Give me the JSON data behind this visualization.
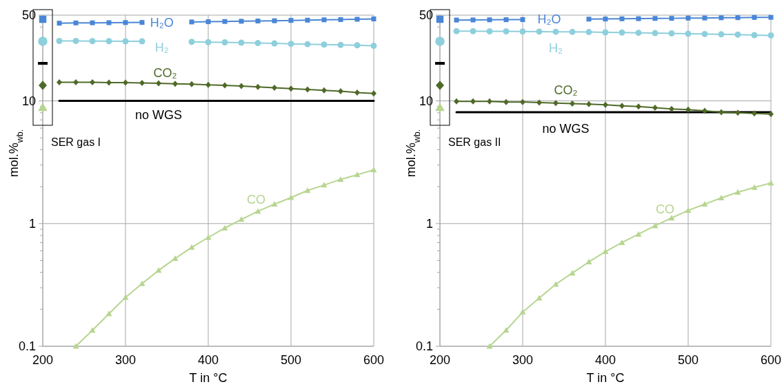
{
  "chart_data": [
    {
      "type": "line",
      "xlabel": "T in °C",
      "ylabel": "mol.%$_{wb.}$",
      "log": "y",
      "grid": true,
      "legend": "top left",
      "annotations": [
        "SER gas I"
      ],
      "x": [
        220,
        240,
        260,
        280,
        300,
        320,
        340,
        360,
        380,
        400,
        420,
        440,
        460,
        480,
        500,
        520,
        540,
        560,
        580,
        600
      ],
      "xlim": [
        200,
        600
      ],
      "xticks": [
        200,
        300,
        400,
        500,
        600
      ],
      "ylim": [
        0.1,
        50
      ],
      "yticks": [
        0.1,
        {
          "value": 0.2,
          "label": null
        },
        {
          "value": 0.3,
          "label": null
        },
        {
          "value": 0.4,
          "label": null
        },
        {
          "value": 0.5,
          "label": null
        },
        {
          "value": 0.6,
          "label": null
        },
        {
          "value": 0.7,
          "label": null
        },
        {
          "value": 0.8,
          "label": null
        },
        {
          "value": 0.9,
          "label": null
        },
        1,
        {
          "value": 2,
          "label": null
        },
        {
          "value": 3,
          "label": null
        },
        {
          "value": 4,
          "label": null
        },
        {
          "value": 5,
          "label": null
        },
        {
          "value": 6,
          "label": null
        },
        {
          "value": 7,
          "label": null
        },
        {
          "value": 8,
          "label": null
        },
        {
          "value": 9,
          "label": null
        },
        10,
        {
          "value": 20,
          "label": null
        },
        {
          "value": 30,
          "label": null
        },
        {
          "value": 40,
          "label": null
        },
        50
      ],
      "series": [
        {
          "name": "H₂O",
          "color": "#4a86d6",
          "marker": "square",
          "values": [
            43,
            43.2,
            43.3,
            43.4,
            43.5,
            43.6,
            null,
            null,
            44.0,
            44.2,
            44.4,
            44.6,
            44.8,
            45.0,
            45.3,
            45.5,
            45.8,
            46.0,
            46.3,
            46.6
          ]
        },
        {
          "name": "H₂",
          "color": "#8ecfdc",
          "marker": "circle",
          "values": [
            30.8,
            30.8,
            30.7,
            30.7,
            30.6,
            30.6,
            null,
            null,
            30.3,
            30.1,
            30.0,
            29.8,
            29.6,
            29.4,
            29.2,
            29.0,
            28.8,
            28.6,
            28.4,
            28.1
          ]
        },
        {
          "name": "no WGS",
          "color": "#000000",
          "marker": "none",
          "x": [
            220,
            600
          ],
          "values": [
            10,
            10
          ]
        },
        {
          "name": "CO₂",
          "color": "#4f6a28",
          "marker": "diamond",
          "values": [
            14.2,
            14.2,
            14.2,
            14.1,
            14.1,
            14.0,
            13.9,
            13.8,
            13.7,
            13.5,
            13.4,
            13.2,
            13.0,
            12.8,
            12.6,
            12.4,
            12.2,
            12.0,
            11.7,
            11.5
          ]
        },
        {
          "name": "CO",
          "color": "#b7d590",
          "marker": "triangle",
          "x": [
            240,
            260,
            280,
            300,
            320,
            340,
            360,
            380,
            400,
            420,
            440,
            460,
            480,
            500,
            520,
            540,
            560,
            580,
            600
          ],
          "values": [
            0.1,
            0.135,
            0.184,
            0.25,
            0.324,
            0.415,
            0.52,
            0.64,
            0.77,
            0.92,
            1.08,
            1.26,
            1.44,
            1.63,
            1.86,
            2.06,
            2.29,
            2.5,
            2.74
          ]
        }
      ]
    },
    {
      "type": "line",
      "xlabel": "T in °C",
      "ylabel": "mol.%$_{wb.}$",
      "log": "y",
      "grid": true,
      "legend": "top left",
      "annotations": [
        "SER gas II"
      ],
      "x": [
        220,
        240,
        260,
        280,
        300,
        320,
        340,
        360,
        380,
        400,
        420,
        440,
        460,
        480,
        500,
        520,
        540,
        560,
        580,
        600
      ],
      "xlim": [
        200,
        600
      ],
      "xticks": [
        200,
        300,
        400,
        500,
        600
      ],
      "ylim": [
        0.1,
        50
      ],
      "yticks": [
        0.1,
        {
          "value": 0.2,
          "label": null
        },
        {
          "value": 0.3,
          "label": null
        },
        {
          "value": 0.4,
          "label": null
        },
        {
          "value": 0.5,
          "label": null
        },
        {
          "value": 0.6,
          "label": null
        },
        {
          "value": 0.7,
          "label": null
        },
        {
          "value": 0.8,
          "label": null
        },
        {
          "value": 0.9,
          "label": null
        },
        1,
        {
          "value": 2,
          "label": null
        },
        {
          "value": 3,
          "label": null
        },
        {
          "value": 4,
          "label": null
        },
        {
          "value": 5,
          "label": null
        },
        {
          "value": 6,
          "label": null
        },
        {
          "value": 7,
          "label": null
        },
        {
          "value": 8,
          "label": null
        },
        {
          "value": 9,
          "label": null
        },
        10,
        {
          "value": 20,
          "label": null
        },
        {
          "value": 30,
          "label": null
        },
        {
          "value": 40,
          "label": null
        },
        50
      ],
      "series": [
        {
          "name": "H₂O",
          "color": "#4a86d6",
          "marker": "square",
          "values": [
            45.6,
            45.7,
            45.8,
            45.9,
            46.0,
            null,
            null,
            null,
            46.4,
            46.5,
            46.7,
            46.8,
            47.0,
            47.1,
            47.3,
            47.4,
            47.6,
            47.7,
            47.9,
            48.0
          ]
        },
        {
          "name": "H₂",
          "color": "#8ecfdc",
          "marker": "circle",
          "values": [
            37.0,
            37.0,
            36.9,
            36.9,
            36.8,
            36.7,
            36.6,
            36.5,
            36.4,
            36.2,
            36.1,
            35.9,
            35.7,
            35.5,
            35.3,
            35.1,
            34.9,
            34.7,
            34.4,
            34.2
          ]
        },
        {
          "name": "no WGS",
          "color": "#000000",
          "marker": "none",
          "x": [
            220,
            600
          ],
          "values": [
            8.1,
            8.1
          ]
        },
        {
          "name": "CO₂",
          "color": "#4f6a28",
          "marker": "diamond",
          "values": [
            9.9,
            9.9,
            9.9,
            9.8,
            9.8,
            9.7,
            9.6,
            9.5,
            9.4,
            9.3,
            9.1,
            9.0,
            8.8,
            8.6,
            8.5,
            8.3,
            8.1,
            8.0,
            7.9,
            7.8
          ]
        },
        {
          "name": "CO",
          "color": "#b7d590",
          "marker": "triangle",
          "x": [
            260,
            280,
            300,
            320,
            340,
            360,
            380,
            400,
            420,
            440,
            460,
            480,
            500,
            520,
            540,
            560,
            580,
            600
          ],
          "values": [
            0.1,
            0.135,
            0.19,
            0.247,
            0.32,
            0.395,
            0.487,
            0.59,
            0.7,
            0.82,
            0.96,
            1.11,
            1.28,
            1.44,
            1.62,
            1.8,
            1.97,
            2.14
          ]
        }
      ]
    }
  ]
}
